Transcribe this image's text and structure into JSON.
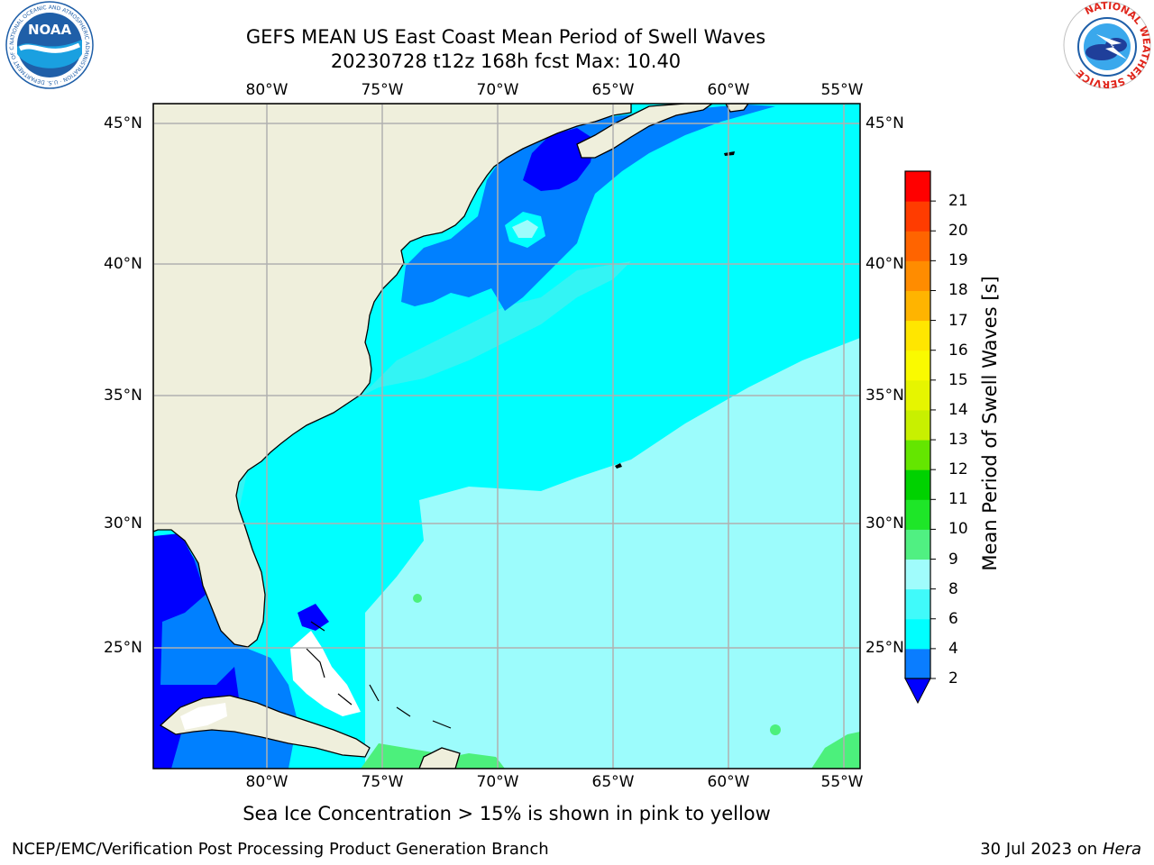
{
  "header": {
    "title_line1": "GEFS MEAN US East Coast Mean Period of Swell Waves",
    "title_line2": "20230728 t12z 168h fcst   Max: 10.40"
  },
  "logos": {
    "noaa": {
      "text": "NOAA",
      "ring_text": "NATIONAL OCEANIC AND ATMOSPHERIC ADMINISTRATION · U.S. DEPARTMENT OF COMMERCE",
      "color": "#1f5fa8"
    },
    "nws": {
      "ring_text": "NATIONAL WEATHER SERVICE",
      "color": "#e0251b"
    }
  },
  "map": {
    "lon_labels": [
      "80°W",
      "75°W",
      "70°W",
      "65°W",
      "60°W",
      "55°W"
    ],
    "lat_labels": [
      "45°N",
      "40°N",
      "35°N",
      "30°N",
      "25°N"
    ],
    "land_color": "#efefdc",
    "coast_color": "#000000",
    "grid_color": "#b0b0b0",
    "field_colors": {
      "2-4": "#0000ff",
      "4-6": "#0080ff",
      "6-8": "#00ffff",
      "8-9": "#9cfcfc",
      "9-10": "#4cf07c",
      "ice_free": "#ffffff"
    }
  },
  "colorbar": {
    "title": "Mean Period of Swell Waves [s]",
    "labels": [
      "2",
      "4",
      "6",
      "8",
      "9",
      "10",
      "11",
      "12",
      "13",
      "14",
      "15",
      "16",
      "17",
      "18",
      "19",
      "20",
      "21"
    ],
    "colors": [
      "#0a7dff",
      "#00ffff",
      "#40fafa",
      "#a0fcfc",
      "#50f082",
      "#1ee628",
      "#00d200",
      "#64e600",
      "#c8f000",
      "#e6f500",
      "#fafa00",
      "#ffe600",
      "#ffb400",
      "#ff8c00",
      "#ff6400",
      "#ff3c00",
      "#ff0000"
    ],
    "under_color": "#0000ff"
  },
  "note": "Sea Ice Concentration > 15% is shown in pink to yellow",
  "footer": {
    "left": "NCEP/EMC/Verification Post Processing Product Generation Branch",
    "date": "30 Jul 2023 on ",
    "machine": "Hera"
  }
}
